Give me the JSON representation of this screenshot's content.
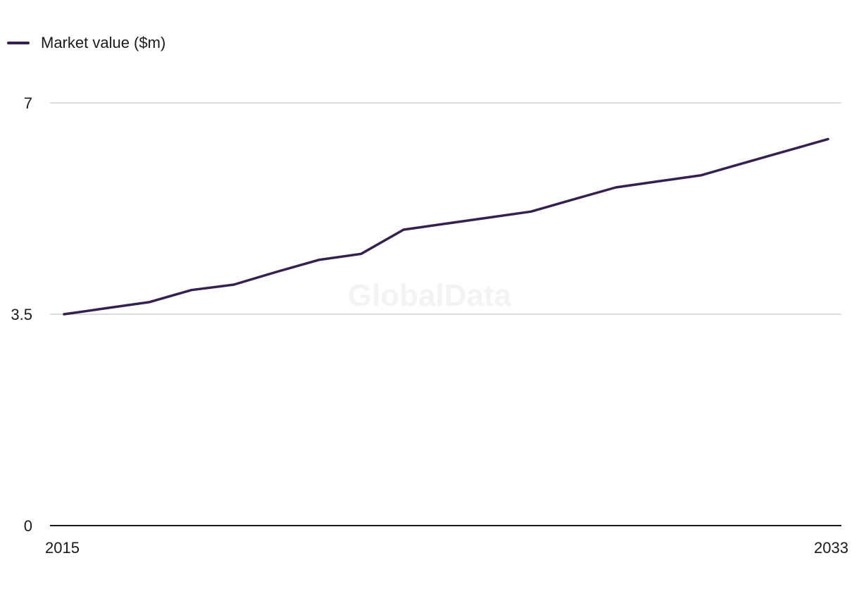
{
  "watermark": "GlobalData",
  "colors": {
    "series": "#35204f",
    "grid": "#d0d0d0",
    "axis": "#1a1a1a",
    "text": "#1a1a1a",
    "watermark": "#f3f3f3"
  },
  "chart_data": {
    "type": "line",
    "title": "",
    "xlabel": "",
    "ylabel": "",
    "legend": {
      "position": "top-left"
    },
    "grid": true,
    "xlim": [
      2015,
      2033
    ],
    "ylim": [
      0,
      7
    ],
    "x_tick_labels": [
      "2015",
      "2033"
    ],
    "y_ticks": [
      0,
      3.5,
      7
    ],
    "y_tick_labels": [
      "0",
      "3.5",
      "7"
    ],
    "x": [
      2015,
      2016,
      2017,
      2018,
      2019,
      2020,
      2021,
      2022,
      2023,
      2024,
      2025,
      2026,
      2027,
      2028,
      2029,
      2030,
      2031,
      2032,
      2033
    ],
    "series": [
      {
        "name": "Market value ($m)",
        "values": [
          3.5,
          3.6,
          3.7,
          3.9,
          3.99,
          4.2,
          4.4,
          4.5,
          4.9,
          5.0,
          5.1,
          5.2,
          5.4,
          5.6,
          5.7,
          5.8,
          6.0,
          6.2,
          6.4
        ]
      }
    ]
  }
}
